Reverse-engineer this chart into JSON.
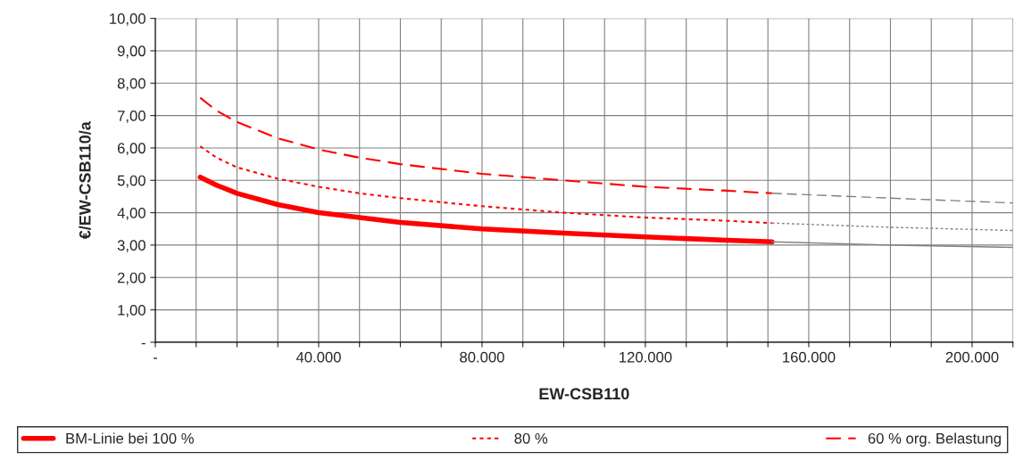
{
  "chart_data": {
    "type": "line",
    "xlabel": "EW-CSB110",
    "ylabel": "€/EW-CSB110/a",
    "xlim": [
      0,
      210000
    ],
    "ylim": [
      0,
      10
    ],
    "xticks": [
      {
        "value": 0,
        "label": "-"
      },
      {
        "value": 10000,
        "label": null
      },
      {
        "value": 20000,
        "label": null
      },
      {
        "value": 30000,
        "label": null
      },
      {
        "value": 40000,
        "label": "40.000"
      },
      {
        "value": 50000,
        "label": null
      },
      {
        "value": 60000,
        "label": null
      },
      {
        "value": 70000,
        "label": null
      },
      {
        "value": 80000,
        "label": "80.000"
      },
      {
        "value": 90000,
        "label": null
      },
      {
        "value": 100000,
        "label": null
      },
      {
        "value": 110000,
        "label": null
      },
      {
        "value": 120000,
        "label": "120.000"
      },
      {
        "value": 130000,
        "label": null
      },
      {
        "value": 140000,
        "label": null
      },
      {
        "value": 150000,
        "label": null
      },
      {
        "value": 160000,
        "label": "160.000"
      },
      {
        "value": 170000,
        "label": null
      },
      {
        "value": 180000,
        "label": null
      },
      {
        "value": 190000,
        "label": null
      },
      {
        "value": 200000,
        "label": "200.000"
      },
      {
        "value": 210000,
        "label": null
      }
    ],
    "yticks": [
      {
        "value": 0,
        "label": "-"
      },
      {
        "value": 1,
        "label": "1,00"
      },
      {
        "value": 2,
        "label": "2,00"
      },
      {
        "value": 3,
        "label": "3,00"
      },
      {
        "value": 4,
        "label": "4,00"
      },
      {
        "value": 5,
        "label": "5,00"
      },
      {
        "value": 6,
        "label": "6,00"
      },
      {
        "value": 7,
        "label": "7,00"
      },
      {
        "value": 8,
        "label": "8,00"
      },
      {
        "value": 9,
        "label": "9,00"
      },
      {
        "value": 10,
        "label": "10,00"
      }
    ],
    "grid": true,
    "legend": "bottom",
    "marker": "none",
    "series": [
      {
        "name": "BM-Linie bei 100 %",
        "color": "#ff0000",
        "line_style": "solid",
        "x": [
          11000,
          15000,
          20000,
          30000,
          40000,
          50000,
          60000,
          80000,
          100000,
          120000,
          140000,
          151000
        ],
        "values": [
          5.1,
          4.85,
          4.6,
          4.25,
          4.0,
          3.85,
          3.7,
          3.5,
          3.37,
          3.25,
          3.15,
          3.1
        ]
      },
      {
        "name": "80 %",
        "color": "#ff0000",
        "line_style": "dotted",
        "x": [
          11000,
          15000,
          20000,
          30000,
          40000,
          50000,
          60000,
          80000,
          100000,
          120000,
          140000,
          151000
        ],
        "values": [
          6.05,
          5.7,
          5.4,
          5.05,
          4.8,
          4.6,
          4.45,
          4.2,
          4.0,
          3.85,
          3.75,
          3.68
        ]
      },
      {
        "name": "60 % org. Belastung",
        "color": "#ff0000",
        "line_style": "dashed",
        "x": [
          11000,
          15000,
          20000,
          30000,
          40000,
          50000,
          60000,
          80000,
          100000,
          120000,
          140000,
          151000
        ],
        "values": [
          7.55,
          7.15,
          6.8,
          6.3,
          5.95,
          5.7,
          5.5,
          5.2,
          5.0,
          4.8,
          4.68,
          4.6
        ]
      },
      {
        "color": "#808080",
        "line_style": "solid",
        "x": [
          151000,
          180000,
          210000
        ],
        "values": [
          3.1,
          3.0,
          2.93
        ]
      },
      {
        "color": "#808080",
        "line_style": "dotted",
        "x": [
          151000,
          180000,
          210000
        ],
        "values": [
          3.68,
          3.55,
          3.45
        ]
      },
      {
        "color": "#808080",
        "line_style": "dashed",
        "x": [
          151000,
          180000,
          210000
        ],
        "values": [
          4.6,
          4.45,
          4.3
        ]
      }
    ]
  }
}
